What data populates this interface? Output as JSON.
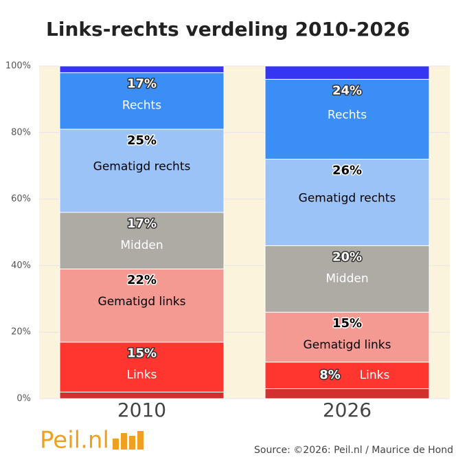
{
  "chart_data": {
    "type": "stacked-bar",
    "title": "Links-rechts verdeling 2010-2026",
    "categories": [
      "2010",
      "2026"
    ],
    "series": [
      {
        "color": "#d32f2f",
        "values": [
          2,
          3
        ]
      },
      {
        "name": "Links",
        "color": "#ff3530",
        "label_color": "#ffffff",
        "values": [
          15,
          8
        ],
        "value_labels": [
          "15%",
          "8%"
        ]
      },
      {
        "name": "Gematigd links",
        "color": "#f59a93",
        "label_color": "#000000",
        "values": [
          22,
          15
        ],
        "value_labels": [
          "22%",
          "15%"
        ]
      },
      {
        "name": "Midden",
        "color": "#aeaba4",
        "label_color": "#ffffff",
        "values": [
          17,
          20
        ],
        "value_labels": [
          "17%",
          "20%"
        ]
      },
      {
        "name": "Gematigd rechts",
        "color": "#9cc3f7",
        "label_color": "#000000",
        "values": [
          25,
          26
        ],
        "value_labels": [
          "25%",
          "26%"
        ]
      },
      {
        "name": "Rechts",
        "color": "#3a8ef5",
        "label_color": "#ffffff",
        "values": [
          17,
          24
        ],
        "value_labels": [
          "17%",
          "24%"
        ]
      },
      {
        "color": "#3535f2",
        "values": [
          2,
          4
        ]
      }
    ],
    "ylim": [
      0,
      100
    ],
    "yticks": [
      {
        "value": 0,
        "label": "0%"
      },
      {
        "value": 20,
        "label": "20%"
      },
      {
        "value": 40,
        "label": "40%"
      },
      {
        "value": 60,
        "label": "60%"
      },
      {
        "value": 80,
        "label": "80%"
      },
      {
        "value": 100,
        "label": "100%"
      }
    ],
    "grid": true,
    "source": "Source: ©2026: Peil.nl / Maurice de Hond",
    "logo": "Peil.nl"
  }
}
